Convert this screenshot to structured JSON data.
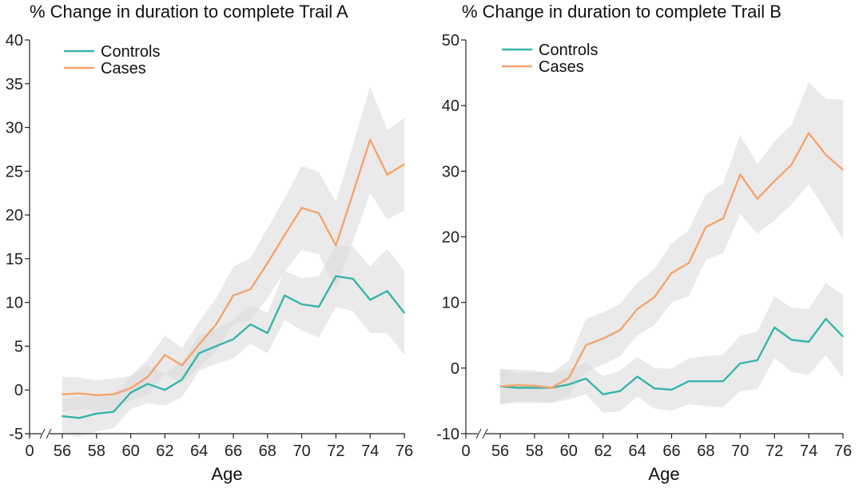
{
  "colors": {
    "controls": "#36b5a8",
    "cases": "#f4a46e",
    "band": "#d9d9d9",
    "axis": "#222222"
  },
  "chart_data": [
    {
      "type": "line",
      "title": "% Change in duration to complete Trail A",
      "xlabel": "Age",
      "ylabel": "",
      "xlim": [
        56,
        76
      ],
      "ylim": [
        -5,
        40
      ],
      "yticks": [
        -5,
        0,
        5,
        10,
        15,
        20,
        25,
        30,
        35,
        40
      ],
      "xticks": [
        56,
        58,
        60,
        62,
        64,
        66,
        68,
        70,
        72,
        74,
        76
      ],
      "zero_label": "0",
      "legend_position": "top-left",
      "x": [
        56,
        57,
        58,
        59,
        60,
        61,
        62,
        63,
        64,
        65,
        66,
        67,
        68,
        69,
        70,
        71,
        72,
        73,
        74,
        75,
        76
      ],
      "series": [
        {
          "name": "Controls",
          "color_key": "controls",
          "values": [
            -3,
            -3.2,
            -2.7,
            -2.5,
            -0.3,
            0.7,
            0,
            1.2,
            4.2,
            5,
            5.8,
            7.5,
            6.5,
            10.8,
            9.8,
            9.5,
            13,
            12.7,
            10.3,
            11.3,
            8.8
          ],
          "lower": [
            -5,
            -5.4,
            -4.7,
            -4.4,
            -2.2,
            -1.5,
            -1.8,
            -0.8,
            2.2,
            3,
            3.6,
            5.3,
            4.2,
            8,
            6.8,
            6,
            9.5,
            9,
            6.5,
            6.5,
            4
          ],
          "upper": [
            -1,
            -0.8,
            -0.7,
            -0.6,
            1.6,
            2.9,
            1.8,
            3.2,
            6.2,
            7,
            8,
            9.7,
            8.8,
            13.6,
            12.8,
            13,
            16.5,
            16.4,
            14.1,
            16.1,
            13.6
          ]
        },
        {
          "name": "Cases",
          "color_key": "cases",
          "values": [
            -0.5,
            -0.4,
            -0.6,
            -0.5,
            0.2,
            1.5,
            4,
            2.8,
            5.2,
            7.5,
            10.8,
            11.5,
            14.5,
            17.7,
            20.8,
            20.2,
            16.5,
            22.5,
            28.6,
            24.6,
            25.8
          ],
          "lower": [
            -2.5,
            -2.2,
            -2.3,
            -2.3,
            -1.2,
            -0.5,
            1.8,
            0.8,
            2.6,
            4.5,
            7.5,
            8,
            10.5,
            13.5,
            16,
            15.5,
            11.5,
            17,
            22.5,
            19.5,
            20.5
          ],
          "upper": [
            1.5,
            1.4,
            1.1,
            1.3,
            1.6,
            3.5,
            6.2,
            4.8,
            7.8,
            10.5,
            14.1,
            15,
            18.5,
            21.9,
            25.6,
            24.9,
            21.5,
            28,
            34.7,
            29.7,
            31.1
          ]
        }
      ]
    },
    {
      "type": "line",
      "title": "% Change in duration to complete Trail B",
      "xlabel": "Age",
      "ylabel": "",
      "xlim": [
        56,
        76
      ],
      "ylim": [
        -10,
        50
      ],
      "yticks": [
        -10,
        0,
        10,
        20,
        30,
        40,
        50
      ],
      "xticks": [
        56,
        58,
        60,
        62,
        64,
        66,
        68,
        70,
        72,
        74,
        76
      ],
      "zero_label": "0",
      "legend_position": "top-left",
      "x": [
        56,
        57,
        58,
        59,
        60,
        61,
        62,
        63,
        64,
        65,
        66,
        67,
        68,
        69,
        70,
        71,
        72,
        73,
        74,
        75,
        76
      ],
      "series": [
        {
          "name": "Controls",
          "color_key": "controls",
          "values": [
            -2.8,
            -3,
            -3,
            -3,
            -2.5,
            -1.6,
            -4,
            -3.5,
            -1.3,
            -3.1,
            -3.3,
            -2,
            -2,
            -2,
            0.7,
            1.2,
            6.2,
            4.3,
            4,
            7.5,
            4.8
          ],
          "lower": [
            -5.5,
            -5.3,
            -5.3,
            -5.3,
            -4.8,
            -4,
            -6.8,
            -6.6,
            -4.3,
            -6.2,
            -6.5,
            -5.5,
            -5.8,
            -6,
            -3.5,
            -3.2,
            1.5,
            -0.6,
            -1,
            2,
            -1.5
          ],
          "upper": [
            -0.1,
            -0.7,
            -0.7,
            -0.7,
            -0.2,
            0.8,
            -1.2,
            -0.4,
            1.7,
            0,
            -0.1,
            1.5,
            1.8,
            2,
            4.9,
            5.6,
            10.9,
            9.2,
            9,
            13,
            11.1
          ]
        },
        {
          "name": "Cases",
          "color_key": "cases",
          "values": [
            -2.8,
            -2.6,
            -2.7,
            -3,
            -1.5,
            3.5,
            4.5,
            5.8,
            9,
            10.8,
            14.5,
            16,
            21.5,
            22.8,
            29.5,
            25.8,
            28.5,
            31,
            35.8,
            32.5,
            30.2
          ],
          "lower": [
            -5.5,
            -5,
            -5,
            -5.3,
            -4.2,
            -0.5,
            0.5,
            1.8,
            5,
            6.5,
            10,
            11,
            16.5,
            17.5,
            23.5,
            20.5,
            22.5,
            25,
            28,
            24,
            19.5
          ],
          "upper": [
            -0.1,
            -0.2,
            -0.4,
            -0.7,
            1.2,
            7.5,
            8.5,
            9.8,
            13,
            15.1,
            19,
            21,
            26.5,
            28.1,
            35.5,
            31.1,
            34.5,
            37,
            43.6,
            41,
            40.9
          ]
        }
      ]
    }
  ]
}
